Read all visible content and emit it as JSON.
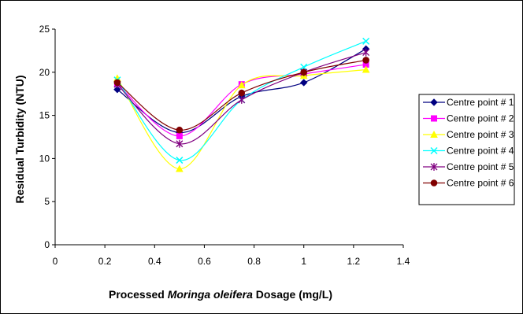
{
  "chart_data": {
    "type": "line",
    "smooth": true,
    "title": "",
    "xlabel_parts": [
      "Processed ",
      "Moringa oleifera",
      " Dosage (mg/L)"
    ],
    "ylabel": "Residual Turbidity (NTU)",
    "xlim": [
      0,
      1.4
    ],
    "ylim": [
      0,
      25
    ],
    "xticks": [
      0,
      0.2,
      0.4,
      0.6,
      0.8,
      1,
      1.2,
      1.4
    ],
    "xtick_labels": [
      "0",
      "0.2",
      "0.4",
      "0.6",
      "0.8",
      "1",
      "1.2",
      "1.4"
    ],
    "yticks": [
      0,
      5,
      10,
      15,
      20,
      25
    ],
    "ytick_labels": [
      "0",
      "5",
      "10",
      "15",
      "20",
      "25"
    ],
    "grid": false,
    "legend_position": "right",
    "x": [
      0.25,
      0.5,
      0.75,
      1.0,
      1.25
    ],
    "series": [
      {
        "name": "Centre point # 1",
        "color": "#000080",
        "marker": "diamond",
        "values": [
          18.0,
          13.0,
          17.2,
          18.8,
          22.7
        ]
      },
      {
        "name": "Centre point # 2",
        "color": "#FF00FF",
        "marker": "square",
        "values": [
          18.7,
          12.6,
          18.6,
          19.8,
          20.9
        ]
      },
      {
        "name": "Centre point # 3",
        "color": "#FFFF00",
        "marker": "triangle",
        "values": [
          19.3,
          8.8,
          18.5,
          19.6,
          20.3
        ]
      },
      {
        "name": "Centre point # 4",
        "color": "#00FFFF",
        "marker": "x",
        "values": [
          19.1,
          9.8,
          16.8,
          20.6,
          23.6
        ]
      },
      {
        "name": "Centre point # 5",
        "color": "#800080",
        "marker": "star",
        "values": [
          18.6,
          11.7,
          16.8,
          20.0,
          22.3
        ]
      },
      {
        "name": "Centre point # 6",
        "color": "#800000",
        "marker": "circle",
        "values": [
          18.8,
          13.3,
          17.6,
          20.0,
          21.4
        ]
      }
    ]
  }
}
